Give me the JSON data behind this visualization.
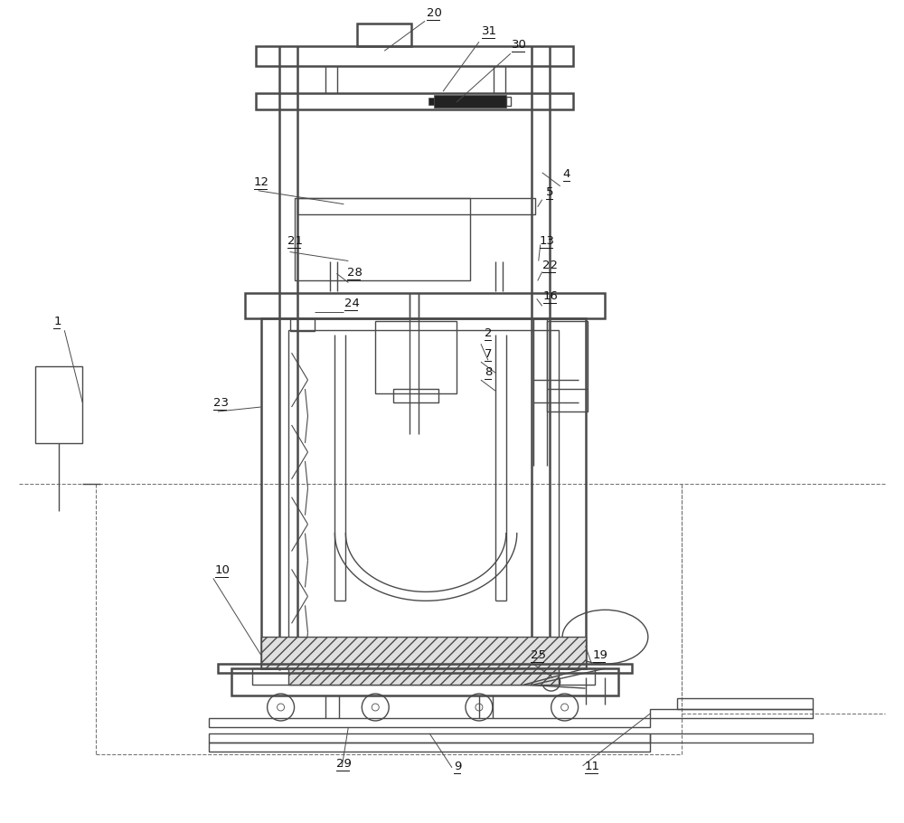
{
  "bg_color": "#ffffff",
  "line_color": "#4a4a4a",
  "lw": 1.0,
  "tlw": 1.8,
  "fig_width": 10.0,
  "fig_height": 9.1
}
